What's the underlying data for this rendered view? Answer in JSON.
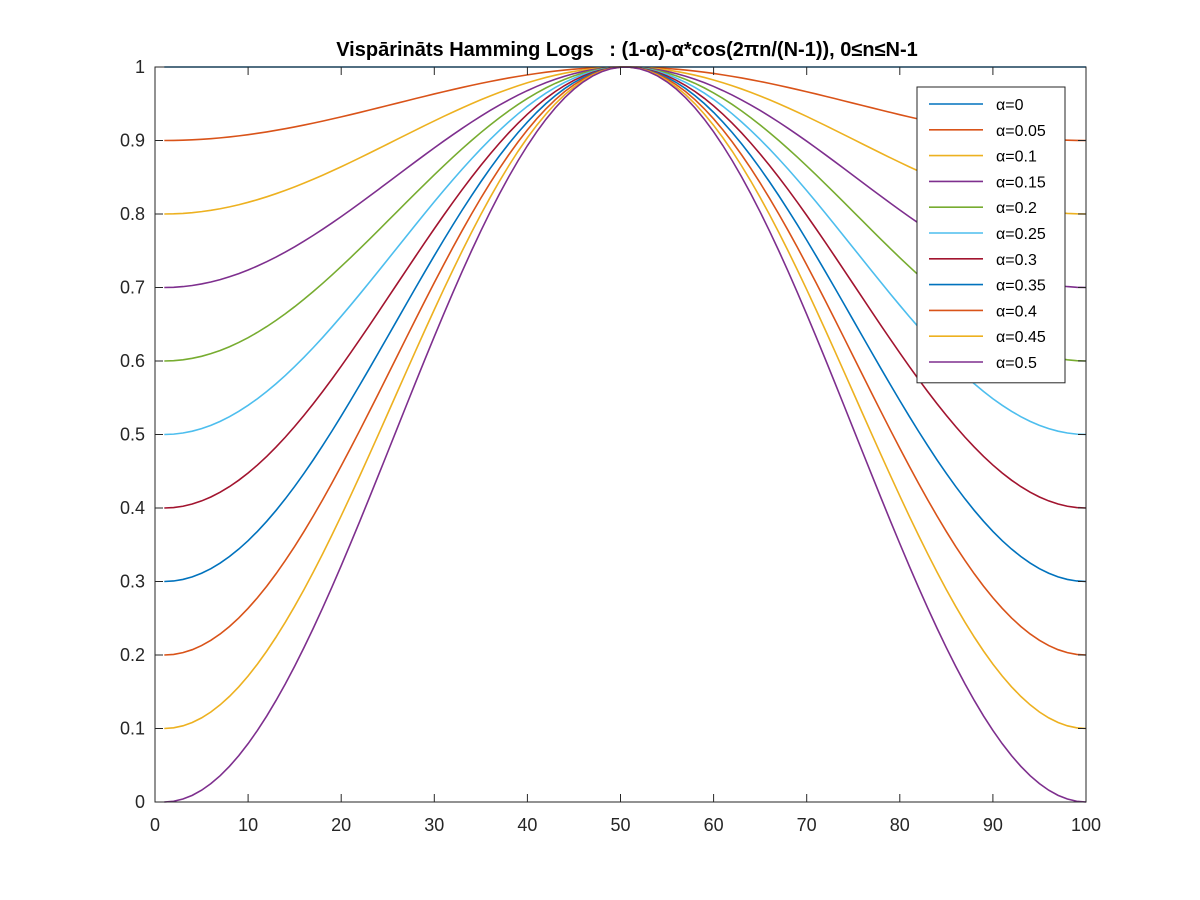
{
  "chart_data": {
    "type": "line",
    "title": "Vispārināts Hamming Logs",
    "subtitle": ": (1-α)-α*cos(2πn/(N-1)), 0≤n≤N-1",
    "xlabel": "",
    "ylabel": "",
    "xlim": [
      0,
      100
    ],
    "ylim": [
      0,
      1
    ],
    "x_ticks": [
      "0",
      "10",
      "20",
      "30",
      "40",
      "50",
      "60",
      "70",
      "80",
      "90",
      "100"
    ],
    "y_ticks": [
      "0",
      "0.1",
      "0.2",
      "0.3",
      "0.4",
      "0.5",
      "0.6",
      "0.7",
      "0.8",
      "0.9",
      "1"
    ],
    "grid": false,
    "legend_position": "top-right",
    "function": "y = (1-α) - α*cos(2π(n-1)/(N-1)), n = 1..N, N = 100",
    "n_points": 100,
    "series": [
      {
        "name": "α=0",
        "alpha": 0,
        "color": "#0072BD",
        "start_value": 1.0,
        "peak_value": 1.0
      },
      {
        "name": "α=0.05",
        "alpha": 0.05,
        "color": "#D95319",
        "start_value": 0.9,
        "peak_value": 1.0
      },
      {
        "name": "α=0.1",
        "alpha": 0.1,
        "color": "#EDB120",
        "start_value": 0.8,
        "peak_value": 1.0
      },
      {
        "name": "α=0.15",
        "alpha": 0.15,
        "color": "#7E2F8E",
        "start_value": 0.7,
        "peak_value": 1.0
      },
      {
        "name": "α=0.2",
        "alpha": 0.2,
        "color": "#77AC30",
        "start_value": 0.6,
        "peak_value": 1.0
      },
      {
        "name": "α=0.25",
        "alpha": 0.25,
        "color": "#4DBEEE",
        "start_value": 0.5,
        "peak_value": 1.0
      },
      {
        "name": "α=0.3",
        "alpha": 0.3,
        "color": "#A2142F",
        "start_value": 0.4,
        "peak_value": 1.0
      },
      {
        "name": "α=0.35",
        "alpha": 0.35,
        "color": "#0072BD",
        "start_value": 0.3,
        "peak_value": 1.0
      },
      {
        "name": "α=0.4",
        "alpha": 0.4,
        "color": "#D95319",
        "start_value": 0.2,
        "peak_value": 1.0
      },
      {
        "name": "α=0.45",
        "alpha": 0.45,
        "color": "#EDB120",
        "start_value": 0.1,
        "peak_value": 1.0
      },
      {
        "name": "α=0.5",
        "alpha": 0.5,
        "color": "#7E2F8E",
        "start_value": 0.0,
        "peak_value": 1.0
      }
    ]
  }
}
